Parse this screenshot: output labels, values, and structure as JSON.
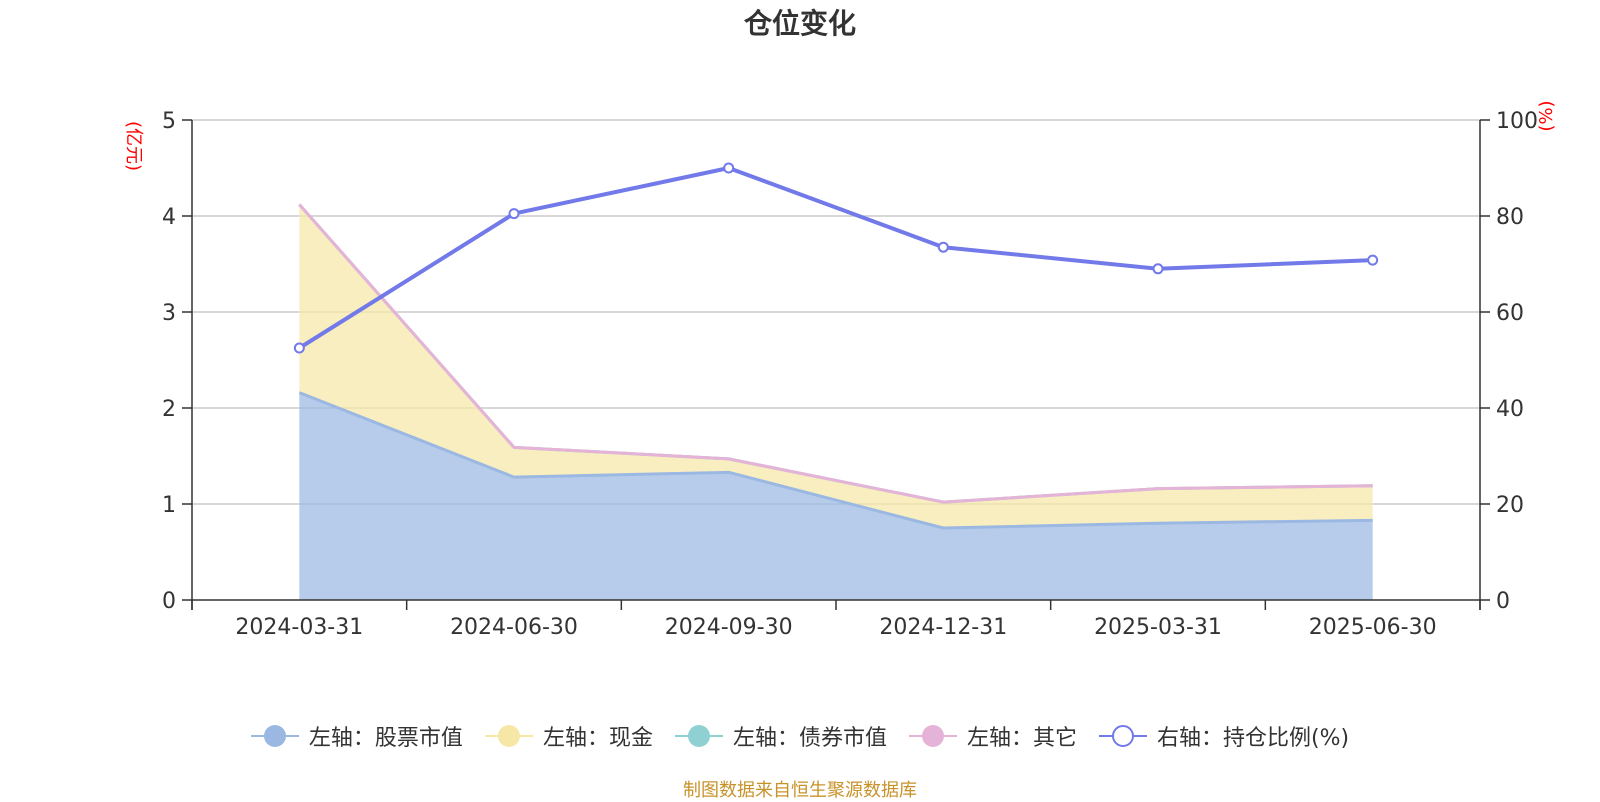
{
  "footer": "制图数据来自恒生聚源数据库",
  "chart_data": {
    "type": "area",
    "title": "仓位变化",
    "categories": [
      "2024-03-31",
      "2024-06-30",
      "2024-09-30",
      "2024-12-31",
      "2025-03-31",
      "2025-06-30"
    ],
    "left_axis": {
      "label": "(亿元)",
      "range": [
        0,
        5
      ],
      "ticks": [
        "0",
        "1",
        "2",
        "3",
        "4",
        "5"
      ],
      "label_color": "#ff0000"
    },
    "right_axis": {
      "label": "(%)",
      "range": [
        0,
        100
      ],
      "ticks": [
        "0",
        "20",
        "40",
        "60",
        "80",
        "100"
      ],
      "label_color": "#ff0000"
    },
    "grid": true,
    "stacked": true,
    "legend_position": "bottom",
    "series": [
      {
        "name": "左轴：股票市值",
        "axis": "left",
        "type": "area",
        "color": "#9bb8e3",
        "values": [
          2.16,
          1.28,
          1.33,
          0.75,
          0.8,
          0.83
        ]
      },
      {
        "name": "左轴：现金",
        "axis": "left",
        "type": "area",
        "color": "#f7e7a6",
        "values": [
          1.96,
          0.31,
          0.14,
          0.27,
          0.36,
          0.36
        ]
      },
      {
        "name": "左轴：债券市值",
        "axis": "left",
        "type": "area",
        "color": "#8fd0d3",
        "values": [
          0,
          0,
          0,
          0,
          0,
          0
        ]
      },
      {
        "name": "左轴：其它",
        "axis": "left",
        "type": "area",
        "color": "#e5b3d8",
        "values": [
          0,
          0,
          0,
          0,
          0,
          0
        ]
      },
      {
        "name": "右轴：持仓比例(%)",
        "axis": "right",
        "type": "line",
        "color": "#7279e8",
        "values": [
          52.5,
          80.5,
          90.0,
          73.5,
          69.0,
          70.8
        ]
      }
    ]
  }
}
